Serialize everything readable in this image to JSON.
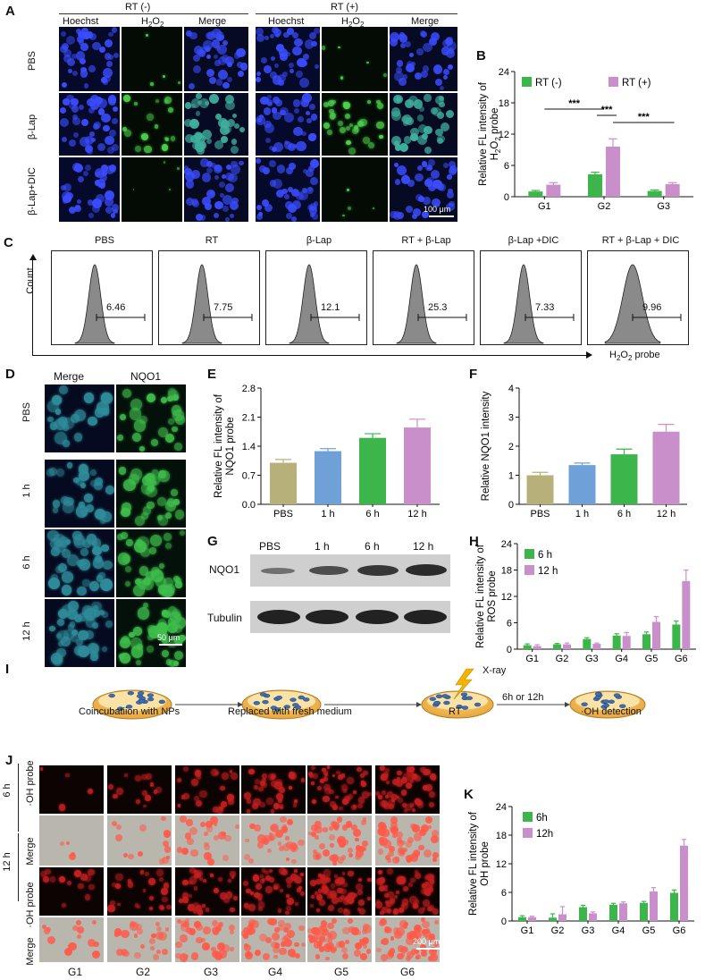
{
  "panel_letters": {
    "A": "A",
    "B": "B",
    "C": "C",
    "D": "D",
    "E": "E",
    "F": "F",
    "G": "G",
    "H": "H",
    "I": "I",
    "J": "J",
    "K": "K"
  },
  "panelA": {
    "group_neg": "RT (-)",
    "group_pos": "RT (+)",
    "cols": [
      "Hoechst",
      "H2O2",
      "Merge",
      "Hoechst",
      "H2O2",
      "Merge"
    ],
    "rows": [
      "PBS",
      "β-Lap",
      "β-Lap+DIC"
    ],
    "scale": "100 μm"
  },
  "panelC": {
    "titles": [
      "PBS",
      "RT",
      "β-Lap",
      "RT +   β-Lap",
      "β-Lap   +DIC",
      "RT +   β-Lap   + DIC"
    ],
    "values": [
      "6.46",
      "7.75",
      "12.1",
      "25.3",
      "7.33",
      "9.96"
    ],
    "y_axis": "Count",
    "x_axis": "H2O2 probe"
  },
  "panelD": {
    "cols": [
      "Merge",
      "NQO1"
    ],
    "rows": [
      "PBS",
      "1 h",
      "6 h",
      "12 h"
    ],
    "scale": "50 μm"
  },
  "panelG": {
    "lanes": [
      "PBS",
      "1 h",
      "6 h",
      "12 h"
    ],
    "rows": [
      "NQO1",
      "Tubulin"
    ]
  },
  "panelI": {
    "steps": [
      "Coincubatiion with NPs",
      "Replaced with fresh medium",
      "RT",
      "·OH detection"
    ],
    "xray": "X-ray",
    "interval": "6h or 12h"
  },
  "panelJ": {
    "groups": [
      "6 h",
      "12 h"
    ],
    "rows": [
      "·OH probe",
      "Merge",
      "·OH probe",
      "Merge"
    ],
    "cols": [
      "G1",
      "G2",
      "G3",
      "G4",
      "G5",
      "G6"
    ],
    "scale": "200 μm"
  },
  "chart_data": [
    {
      "id": "B",
      "type": "bar",
      "ylabel_lines": [
        "Relative FL intensity of",
        "H2O2 probe"
      ],
      "categories": [
        "G1",
        "G2",
        "G3"
      ],
      "ylim": [
        0,
        24
      ],
      "yticks": [
        0,
        6,
        12,
        18,
        24
      ],
      "series": [
        {
          "name": "RT (-)",
          "color": "#3cb54a",
          "values": [
            1.0,
            4.3,
            1.1
          ],
          "errors": [
            0.2,
            0.4,
            0.2
          ]
        },
        {
          "name": "RT (+)",
          "color": "#c98fcb",
          "values": [
            2.3,
            9.6,
            2.4
          ],
          "errors": [
            0.4,
            1.5,
            0.3
          ]
        }
      ],
      "significance": [
        "***",
        "***",
        "***"
      ]
    },
    {
      "id": "E",
      "type": "bar",
      "ylabel_lines": [
        "Relative FL intensity of",
        "NQO1 probe"
      ],
      "categories": [
        "PBS",
        "1 h",
        "6 h",
        "12 h"
      ],
      "ylim": [
        0,
        2.8
      ],
      "yticks": [
        "0.0",
        "0.7",
        "1.4",
        "2.1",
        "2.8"
      ],
      "colors": [
        "#b8b07a",
        "#6fa0d8",
        "#3cb54a",
        "#c98fcb"
      ],
      "values": [
        1.0,
        1.28,
        1.6,
        1.85
      ],
      "errors": [
        0.08,
        0.06,
        0.1,
        0.2
      ]
    },
    {
      "id": "F",
      "type": "bar",
      "ylabel_lines": [
        "Relative NQO1 intensity"
      ],
      "categories": [
        "PBS",
        "1 h",
        "6 h",
        "12 h"
      ],
      "ylim": [
        0,
        4
      ],
      "yticks": [
        "0",
        "1",
        "2",
        "3",
        "4"
      ],
      "colors": [
        "#b8b07a",
        "#6fa0d8",
        "#3cb54a",
        "#c98fcb"
      ],
      "values": [
        1.0,
        1.35,
        1.72,
        2.5
      ],
      "errors": [
        0.1,
        0.07,
        0.18,
        0.25
      ]
    },
    {
      "id": "H",
      "type": "bar",
      "ylabel_lines": [
        "Relative FL intensity of",
        "ROS probe"
      ],
      "categories": [
        "G1",
        "G2",
        "G3",
        "G4",
        "G5",
        "G6"
      ],
      "ylim": [
        0,
        24
      ],
      "yticks": [
        0,
        6,
        12,
        18,
        24
      ],
      "series": [
        {
          "name": "6 h",
          "color": "#3cb54a",
          "values": [
            0.9,
            1.1,
            2.3,
            3.1,
            3.4,
            5.6
          ],
          "errors": [
            0.3,
            0.2,
            0.3,
            0.4,
            0.5,
            0.8
          ]
        },
        {
          "name": "12 h",
          "color": "#c98fcb",
          "values": [
            0.7,
            1.1,
            1.2,
            3.0,
            6.2,
            15.5
          ],
          "errors": [
            0.3,
            0.3,
            0.2,
            0.8,
            1.2,
            2.5
          ]
        }
      ]
    },
    {
      "id": "K",
      "type": "bar",
      "ylabel_lines": [
        "Relative FL intensity of",
        "OH probe"
      ],
      "categories": [
        "G1",
        "G2",
        "G3",
        "G4",
        "G5",
        "G6"
      ],
      "ylim": [
        0,
        24
      ],
      "yticks": [
        0,
        6,
        12,
        18,
        24
      ],
      "series": [
        {
          "name": "6h",
          "color": "#3cb54a",
          "values": [
            0.8,
            0.7,
            2.9,
            3.4,
            3.8,
            5.9
          ],
          "errors": [
            0.3,
            0.8,
            0.4,
            0.3,
            0.3,
            0.6
          ]
        },
        {
          "name": "12h",
          "color": "#c98fcb",
          "values": [
            0.8,
            1.4,
            1.6,
            3.7,
            6.2,
            15.8
          ],
          "errors": [
            0.2,
            1.6,
            0.3,
            0.3,
            0.8,
            1.3
          ]
        }
      ]
    }
  ]
}
